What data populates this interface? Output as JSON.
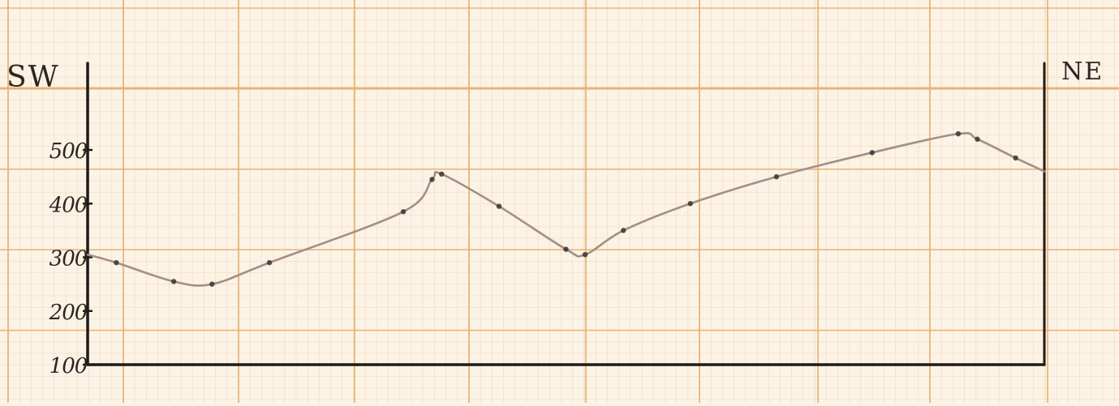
{
  "chart_data": {
    "type": "line",
    "title": "",
    "xlabel": "",
    "ylabel": "",
    "left_label": "SW",
    "right_label": "NE",
    "ylim": [
      100,
      580
    ],
    "yticks": [
      100,
      200,
      300,
      400,
      500
    ],
    "ytick_labels": [
      "100",
      "200",
      "300",
      "400",
      "500"
    ],
    "grid": true,
    "series": [
      {
        "x": [
          0,
          3,
          9,
          13,
          19,
          33,
          36,
          37,
          43,
          50,
          52,
          56,
          63,
          72,
          82,
          91,
          93,
          97,
          100
        ],
        "y": [
          305,
          290,
          255,
          250,
          290,
          385,
          445,
          455,
          395,
          315,
          305,
          350,
          400,
          450,
          495,
          530,
          520,
          485,
          460
        ]
      }
    ],
    "colors": {
      "paper": "#fbf3e6",
      "grid_major": "#e9b06f",
      "grid_minor": "#f1d2a8",
      "axis": "#1f1a17",
      "line": "#a48e88",
      "marker": "#3a3431",
      "label": "#2a2623"
    }
  }
}
